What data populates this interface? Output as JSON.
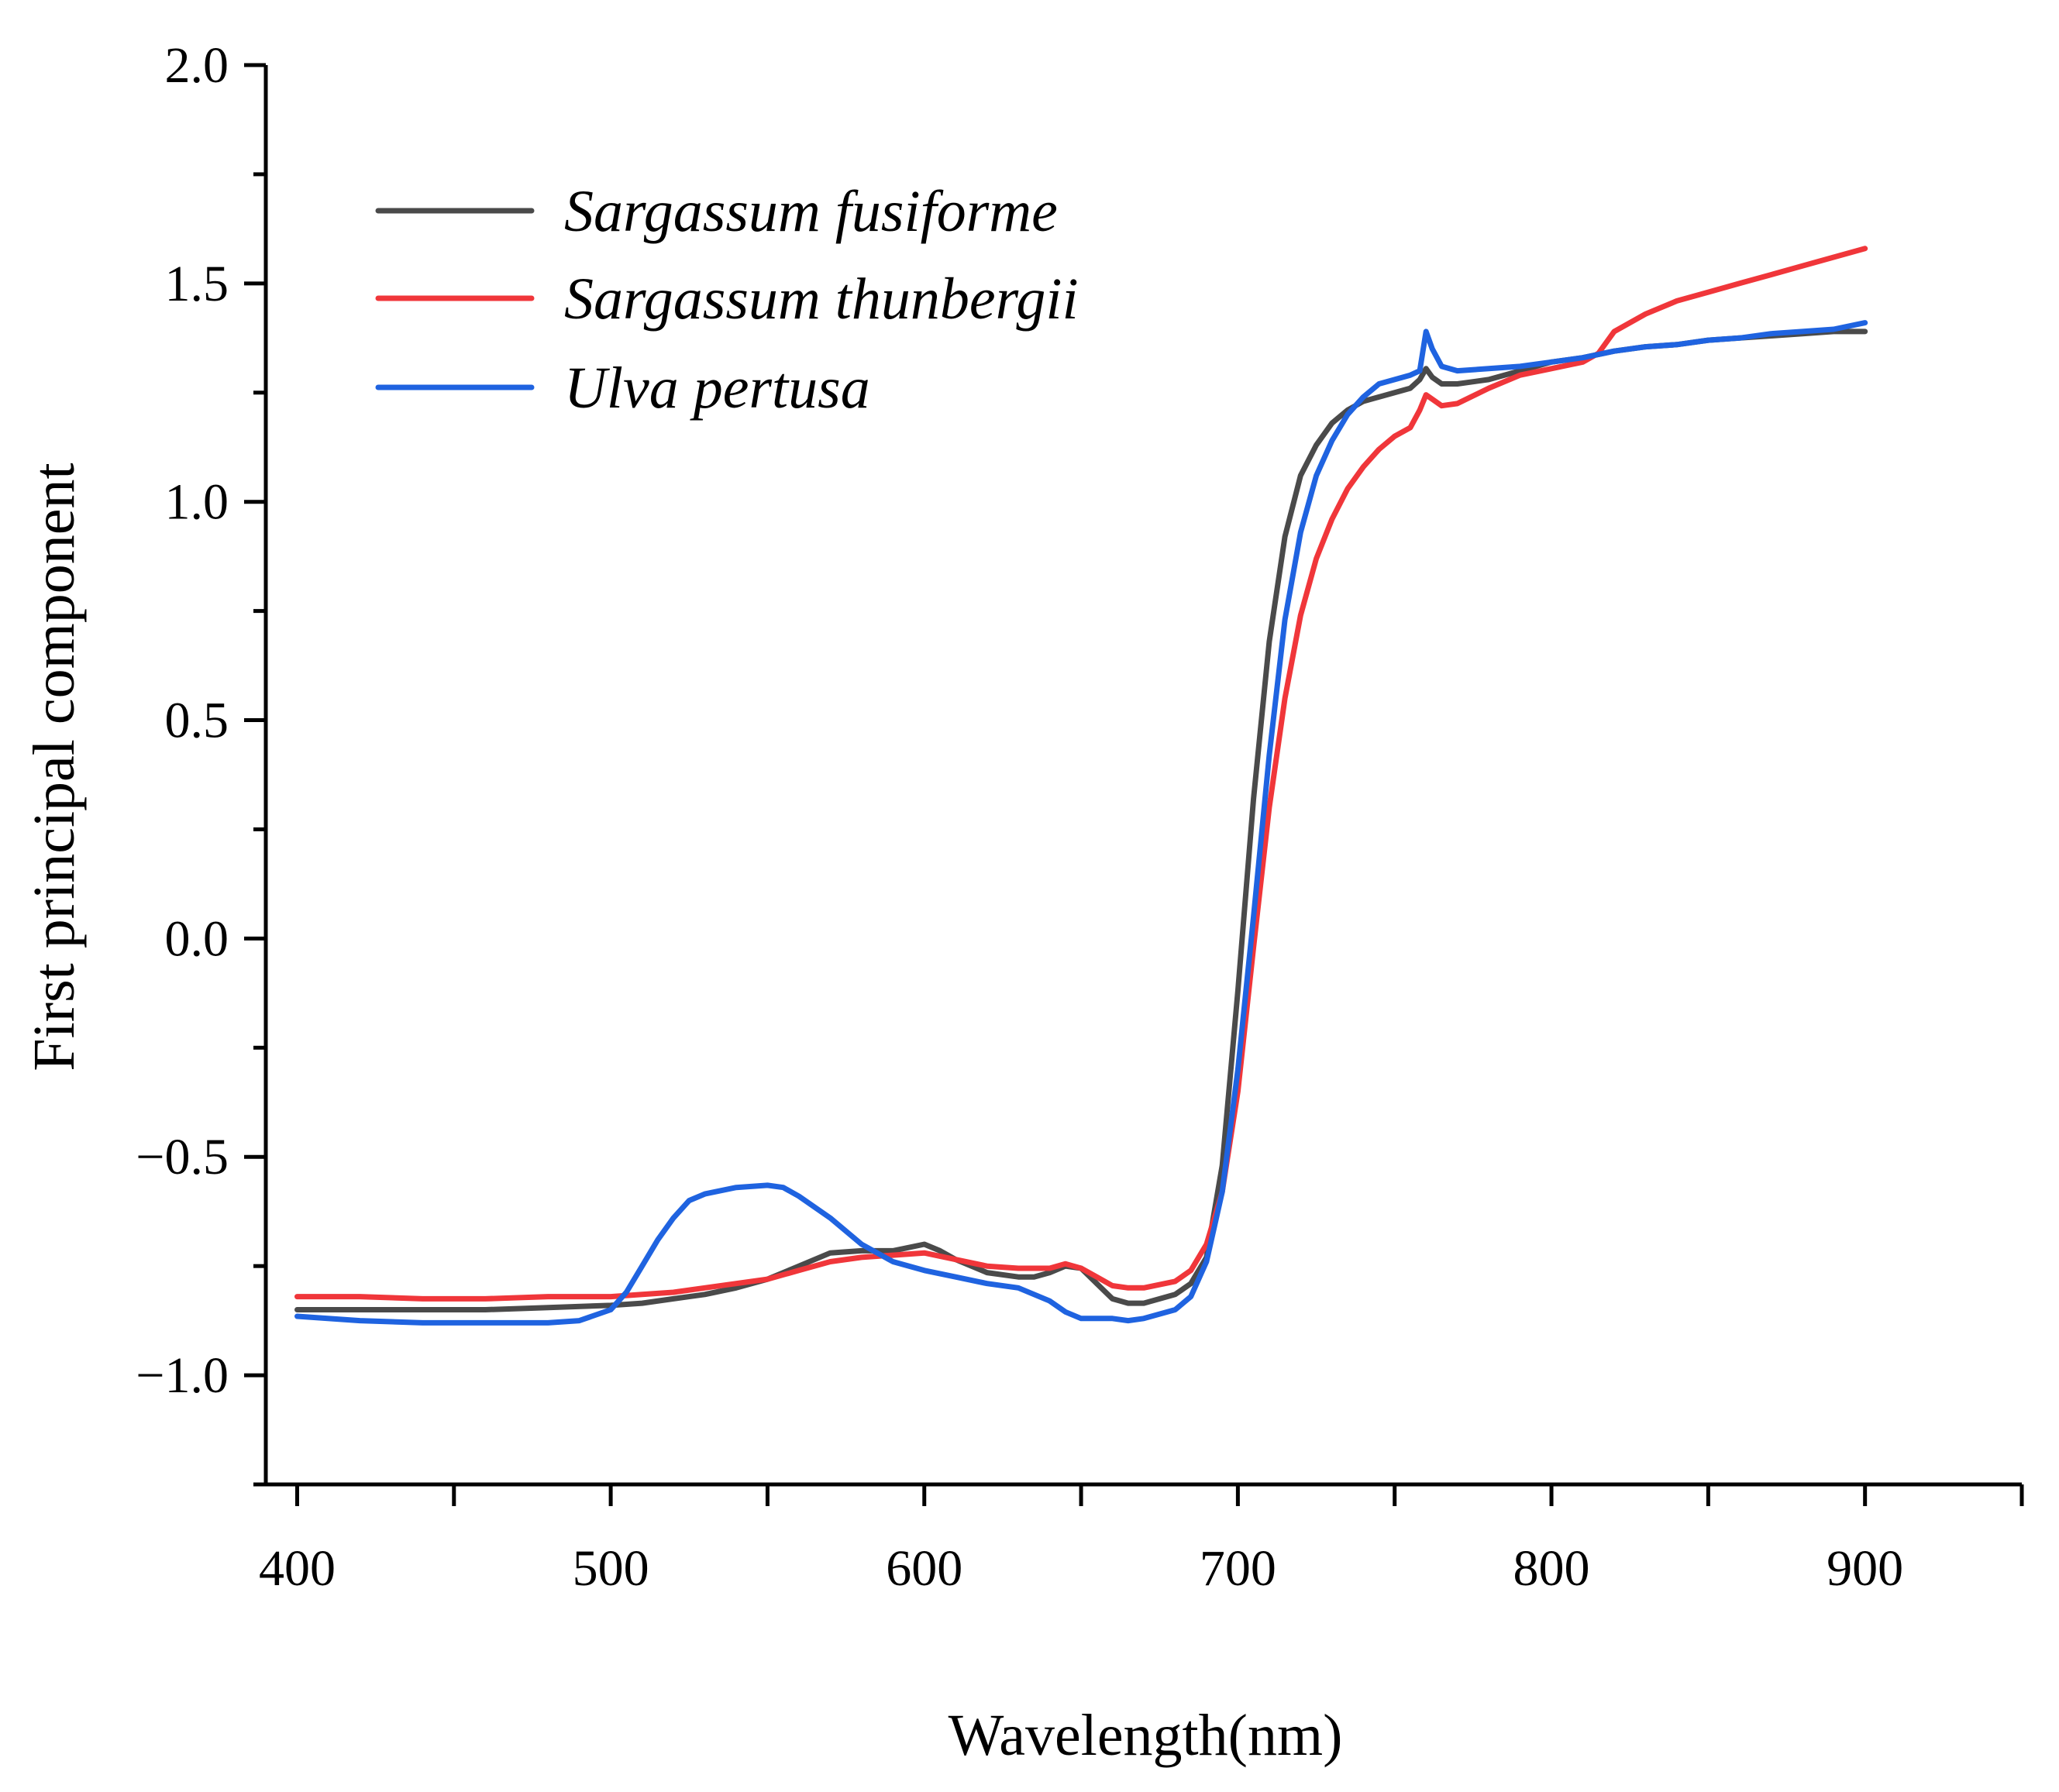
{
  "chart_data": {
    "type": "line",
    "title": "",
    "xlabel": "Wavelength(nm)",
    "ylabel": "First principal component",
    "xlim": [
      390,
      950
    ],
    "ylim": [
      -1.25,
      2.0
    ],
    "xticks": [
      400,
      500,
      600,
      700,
      800,
      900
    ],
    "xtick_labels": [
      "400",
      "500",
      "600",
      "700",
      "800",
      "900"
    ],
    "xminor": [
      450,
      550,
      650,
      750,
      850,
      950
    ],
    "yticks": [
      -1.0,
      -0.5,
      0.0,
      0.5,
      1.0,
      1.5,
      2.0
    ],
    "ytick_labels": [
      "−1.0",
      "−0.5",
      "0.0",
      "0.5",
      "1.0",
      "1.5",
      "2.0"
    ],
    "yminor": [
      -1.25,
      -0.75,
      -0.25,
      0.25,
      0.75,
      1.25,
      1.75
    ],
    "grid": false,
    "legend_position": "top-left",
    "series": [
      {
        "name": "Sargassum fusiforme",
        "color": "#4a4a4a",
        "x": [
          400,
          420,
          440,
          460,
          480,
          500,
          510,
          520,
          530,
          540,
          550,
          560,
          570,
          580,
          590,
          600,
          605,
          610,
          620,
          630,
          635,
          640,
          645,
          650,
          655,
          660,
          665,
          670,
          680,
          685,
          690,
          695,
          700,
          705,
          710,
          715,
          720,
          725,
          730,
          735,
          740,
          745,
          750,
          755,
          758,
          760,
          762,
          765,
          770,
          780,
          790,
          800,
          810,
          820,
          830,
          840,
          850,
          860,
          870,
          880,
          890,
          900
        ],
        "y": [
          -0.85,
          -0.85,
          -0.85,
          -0.85,
          -0.845,
          -0.84,
          -0.835,
          -0.825,
          -0.815,
          -0.8,
          -0.78,
          -0.75,
          -0.72,
          -0.715,
          -0.715,
          -0.7,
          -0.715,
          -0.735,
          -0.765,
          -0.775,
          -0.775,
          -0.765,
          -0.75,
          -0.755,
          -0.79,
          -0.825,
          -0.835,
          -0.835,
          -0.815,
          -0.79,
          -0.73,
          -0.52,
          -0.12,
          0.32,
          0.68,
          0.92,
          1.06,
          1.13,
          1.18,
          1.21,
          1.23,
          1.24,
          1.25,
          1.26,
          1.28,
          1.305,
          1.285,
          1.27,
          1.27,
          1.28,
          1.3,
          1.32,
          1.33,
          1.345,
          1.355,
          1.36,
          1.37,
          1.375,
          1.38,
          1.385,
          1.39,
          1.39
        ]
      },
      {
        "name": "Sargassum thunbergii",
        "color": "#f0363a",
        "x": [
          400,
          420,
          440,
          460,
          480,
          500,
          510,
          520,
          530,
          540,
          550,
          560,
          570,
          580,
          590,
          600,
          610,
          620,
          630,
          640,
          645,
          650,
          655,
          660,
          665,
          670,
          680,
          685,
          690,
          695,
          700,
          705,
          710,
          715,
          720,
          725,
          730,
          735,
          740,
          745,
          750,
          755,
          758,
          760,
          762,
          765,
          770,
          780,
          790,
          800,
          810,
          815,
          820,
          830,
          840,
          850,
          860,
          870,
          880,
          890,
          900
        ],
        "y": [
          -0.82,
          -0.82,
          -0.825,
          -0.825,
          -0.82,
          -0.82,
          -0.815,
          -0.81,
          -0.8,
          -0.79,
          -0.78,
          -0.76,
          -0.74,
          -0.73,
          -0.725,
          -0.72,
          -0.735,
          -0.75,
          -0.755,
          -0.755,
          -0.745,
          -0.755,
          -0.775,
          -0.795,
          -0.8,
          -0.8,
          -0.785,
          -0.76,
          -0.7,
          -0.58,
          -0.35,
          -0.02,
          0.3,
          0.55,
          0.74,
          0.87,
          0.96,
          1.03,
          1.08,
          1.12,
          1.15,
          1.17,
          1.21,
          1.245,
          1.235,
          1.22,
          1.225,
          1.26,
          1.29,
          1.305,
          1.32,
          1.34,
          1.39,
          1.43,
          1.46,
          1.48,
          1.5,
          1.52,
          1.54,
          1.56,
          1.58
        ]
      },
      {
        "name": "Ulva pertusa",
        "color": "#1f63e0",
        "x": [
          400,
          420,
          440,
          460,
          480,
          490,
          500,
          505,
          510,
          515,
          520,
          525,
          530,
          540,
          550,
          555,
          560,
          570,
          580,
          590,
          600,
          610,
          620,
          630,
          640,
          645,
          650,
          655,
          660,
          665,
          670,
          680,
          685,
          690,
          695,
          700,
          705,
          710,
          715,
          720,
          725,
          730,
          735,
          740,
          745,
          750,
          755,
          758,
          760,
          762,
          765,
          770,
          780,
          790,
          800,
          810,
          820,
          830,
          840,
          850,
          860,
          870,
          880,
          890,
          900
        ],
        "y": [
          -0.865,
          -0.875,
          -0.88,
          -0.88,
          -0.88,
          -0.875,
          -0.85,
          -0.81,
          -0.75,
          -0.69,
          -0.64,
          -0.6,
          -0.585,
          -0.57,
          -0.565,
          -0.57,
          -0.59,
          -0.64,
          -0.7,
          -0.74,
          -0.76,
          -0.775,
          -0.79,
          -0.8,
          -0.83,
          -0.855,
          -0.87,
          -0.87,
          -0.87,
          -0.875,
          -0.87,
          -0.85,
          -0.82,
          -0.74,
          -0.58,
          -0.3,
          0.05,
          0.42,
          0.73,
          0.93,
          1.06,
          1.14,
          1.2,
          1.24,
          1.27,
          1.28,
          1.29,
          1.3,
          1.39,
          1.35,
          1.31,
          1.3,
          1.305,
          1.31,
          1.32,
          1.33,
          1.345,
          1.355,
          1.36,
          1.37,
          1.375,
          1.385,
          1.39,
          1.395,
          1.41
        ]
      }
    ]
  }
}
